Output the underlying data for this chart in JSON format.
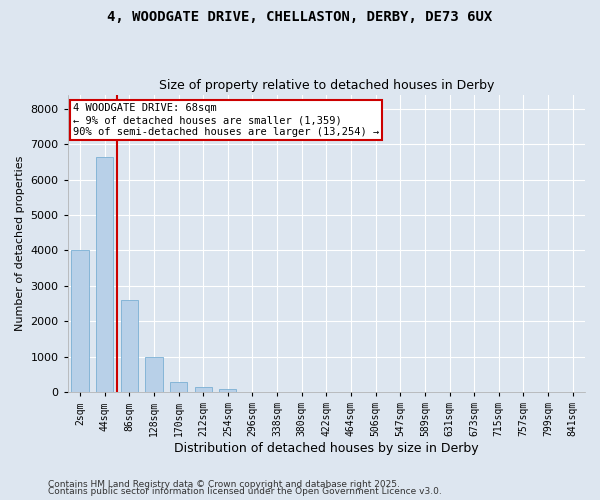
{
  "title1": "4, WOODGATE DRIVE, CHELLASTON, DERBY, DE73 6UX",
  "title2": "Size of property relative to detached houses in Derby",
  "xlabel": "Distribution of detached houses by size in Derby",
  "ylabel": "Number of detached properties",
  "bar_color": "#b8d0e8",
  "bar_edge_color": "#7aafd4",
  "background_color": "#dde6f0",
  "grid_color": "#ffffff",
  "categories": [
    "2sqm",
    "44sqm",
    "86sqm",
    "128sqm",
    "170sqm",
    "212sqm",
    "254sqm",
    "296sqm",
    "338sqm",
    "380sqm",
    "422sqm",
    "464sqm",
    "506sqm",
    "547sqm",
    "589sqm",
    "631sqm",
    "673sqm",
    "715sqm",
    "757sqm",
    "799sqm",
    "841sqm"
  ],
  "values": [
    4000,
    6650,
    2600,
    1000,
    300,
    150,
    80,
    0,
    0,
    0,
    0,
    0,
    0,
    0,
    0,
    0,
    0,
    0,
    0,
    0,
    0
  ],
  "ylim_max": 8400,
  "yticks": [
    0,
    1000,
    2000,
    3000,
    4000,
    5000,
    6000,
    7000,
    8000
  ],
  "property_size_idx": 1,
  "vline_color": "#cc0000",
  "annotation_text": "4 WOODGATE DRIVE: 68sqm\n← 9% of detached houses are smaller (1,359)\n90% of semi-detached houses are larger (13,254) →",
  "footer1": "Contains HM Land Registry data © Crown copyright and database right 2025.",
  "footer2": "Contains public sector information licensed under the Open Government Licence v3.0."
}
